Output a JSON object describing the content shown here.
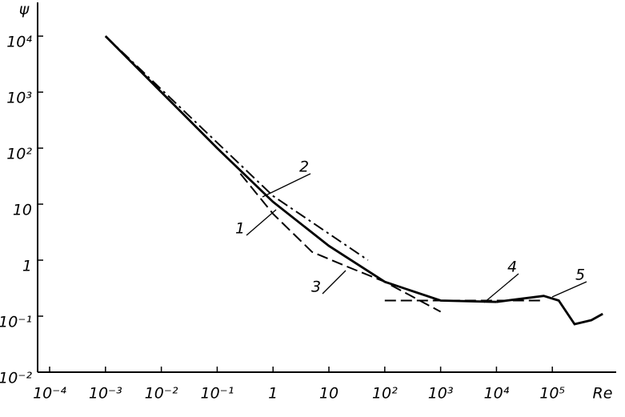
{
  "chart_data": {
    "type": "line",
    "y_label": "ψ",
    "x_label": "Re",
    "xscale": "log",
    "yscale": "log",
    "xlim": [
      0.0001,
      1000000
    ],
    "ylim": [
      0.01,
      40000
    ],
    "xticks": [
      {
        "value": 0.0001,
        "label": "10⁻⁴"
      },
      {
        "value": 0.001,
        "label": "10⁻³"
      },
      {
        "value": 0.01,
        "label": "10⁻²"
      },
      {
        "value": 0.1,
        "label": "10⁻¹"
      },
      1,
      10,
      {
        "value": 100,
        "label": "10²"
      },
      {
        "value": 1000,
        "label": "10³"
      },
      {
        "value": 10000,
        "label": "10⁴"
      },
      {
        "value": 100000,
        "label": "10⁵"
      }
    ],
    "yticks": [
      {
        "value": 0.01,
        "label": "10⁻²"
      },
      {
        "value": 0.1,
        "label": "10⁻¹"
      },
      1,
      10,
      {
        "value": 100,
        "label": "10²"
      },
      {
        "value": 1000,
        "label": "10³"
      },
      {
        "value": 10000,
        "label": "10⁴"
      }
    ],
    "series": [
      {
        "name": "1",
        "color": "#000000",
        "style": "solid",
        "x": [
          0.001,
          0.01,
          0.1,
          1,
          10,
          100,
          1000,
          10000
        ],
        "values": [
          10000,
          1000,
          100,
          11,
          1.8,
          0.41,
          0.19,
          0.18
        ]
      },
      {
        "name": "2",
        "color": "#000000",
        "style": "dashdot",
        "x": [
          0.001,
          1,
          50
        ],
        "values": [
          10000,
          14,
          1.0
        ]
      },
      {
        "name": "3",
        "color": "#000000",
        "style": "dashed",
        "x": [
          0.26,
          1,
          5,
          19,
          100,
          1000
        ],
        "values": [
          35,
          6.7,
          1.4,
          0.8,
          0.41,
          0.12
        ]
      },
      {
        "name": "4",
        "color": "#000000",
        "style": "dashed",
        "x": [
          100,
          70000
        ],
        "values": [
          0.19,
          0.19
        ]
      },
      {
        "name": "5",
        "color": "#000000",
        "style": "solid",
        "x": [
          10000,
          70000,
          130000,
          250000,
          500000,
          800000
        ],
        "values": [
          0.18,
          0.23,
          0.19,
          0.072,
          0.085,
          0.11
        ]
      }
    ]
  }
}
